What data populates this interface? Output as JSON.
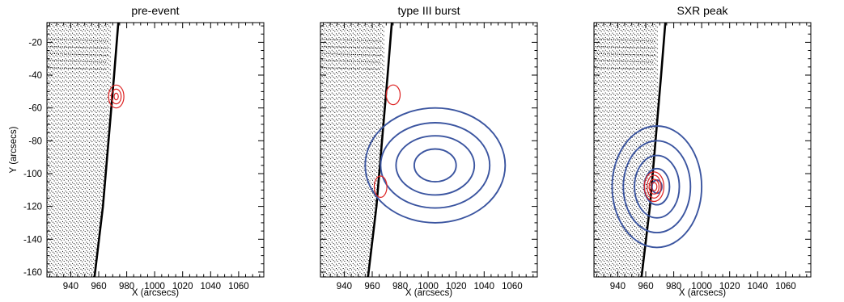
{
  "chart_data": [
    {
      "type": "contour",
      "title": "pre-event",
      "xlabel": "X (arcsecs)",
      "ylabel": "Y (arcsecs)",
      "xlim": [
        923,
        1078
      ],
      "ylim": [
        -163,
        -8
      ],
      "x_ticks": [
        940,
        960,
        980,
        1000,
        1020,
        1040,
        1060
      ],
      "y_ticks": [
        -20,
        -40,
        -60,
        -80,
        -100,
        -120,
        -140,
        -160
      ],
      "limb": [
        {
          "x": 957,
          "y": -163
        },
        {
          "x": 963,
          "y": -120
        },
        {
          "x": 967,
          "y": -80
        },
        {
          "x": 971,
          "y": -40
        },
        {
          "x": 974,
          "y": -8
        }
      ],
      "contours": [
        {
          "color": "#dd2222",
          "center": [
            972.5,
            -53
          ],
          "radii_x": [
            5.5,
            3.5,
            1.5
          ],
          "radii_y": [
            7,
            4.5,
            2
          ]
        }
      ]
    },
    {
      "type": "contour",
      "title": "type III burst",
      "xlabel": "X (arcsecs)",
      "ylabel": "",
      "xlim": [
        923,
        1078
      ],
      "ylim": [
        -163,
        -8
      ],
      "x_ticks": [
        940,
        960,
        980,
        1000,
        1020,
        1040,
        1060
      ],
      "y_ticks": [],
      "limb": [
        {
          "x": 957,
          "y": -163
        },
        {
          "x": 963,
          "y": -120
        },
        {
          "x": 967,
          "y": -80
        },
        {
          "x": 971,
          "y": -40
        },
        {
          "x": 974,
          "y": -8
        }
      ],
      "contours": [
        {
          "color": "#3b55a0",
          "center": [
            1005,
            -95
          ],
          "radii_x": [
            50,
            39,
            28,
            15
          ],
          "radii_y": [
            35,
            26,
            18,
            10
          ]
        },
        {
          "color": "#dd2222",
          "center": [
            975,
            -52
          ],
          "radii_x": [
            5
          ],
          "radii_y": [
            6
          ]
        },
        {
          "color": "#dd2222",
          "center": [
            966,
            -108
          ],
          "radii_x": [
            4.5
          ],
          "radii_y": [
            6.5
          ]
        }
      ]
    },
    {
      "type": "contour",
      "title": "SXR peak",
      "xlabel": "X (arcsecs)",
      "ylabel": "",
      "xlim": [
        923,
        1078
      ],
      "ylim": [
        -163,
        -8
      ],
      "x_ticks": [
        940,
        960,
        980,
        1000,
        1020,
        1040,
        1060
      ],
      "y_ticks": [],
      "limb": [
        {
          "x": 957,
          "y": -163
        },
        {
          "x": 963,
          "y": -120
        },
        {
          "x": 967,
          "y": -80
        },
        {
          "x": 971,
          "y": -40
        },
        {
          "x": 974,
          "y": -8
        }
      ],
      "contours": [
        {
          "color": "#3b55a0",
          "center": [
            968,
            -108
          ],
          "radii_x": [
            32,
            24,
            16,
            9,
            3.5
          ],
          "radii_y": [
            37,
            28,
            19,
            11,
            4
          ]
        },
        {
          "color": "#dd2222",
          "center": [
            966,
            -108
          ],
          "radii_x": [
            7,
            5,
            3.5,
            2
          ],
          "radii_y": [
            9,
            7,
            4.5,
            2.5
          ]
        }
      ]
    }
  ]
}
